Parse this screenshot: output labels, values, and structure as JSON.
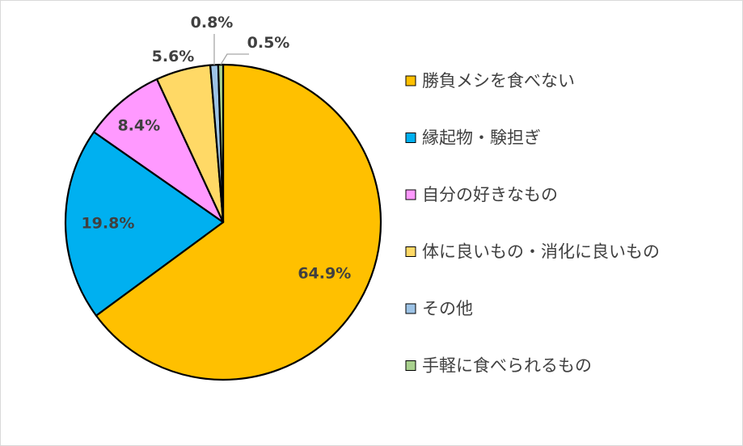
{
  "chart_data": {
    "type": "pie",
    "title": "",
    "categories": [
      "勝負メシを食べない",
      "縁起物・験担ぎ",
      "自分の好きなもの",
      "体に良いもの・消化に良いもの",
      "その他",
      "手軽に食べられるもの"
    ],
    "values": [
      64.9,
      19.8,
      8.4,
      5.6,
      0.8,
      0.5
    ],
    "labels": [
      "64.9%",
      "19.8%",
      "8.4%",
      "5.6%",
      "0.8%",
      "0.5%"
    ],
    "colors": [
      "#FFC000",
      "#00B0F0",
      "#FF99FF",
      "#FFD966",
      "#9DC3E6",
      "#A9D18E"
    ],
    "legend": "right",
    "start": "top",
    "direction": "clockwise"
  }
}
